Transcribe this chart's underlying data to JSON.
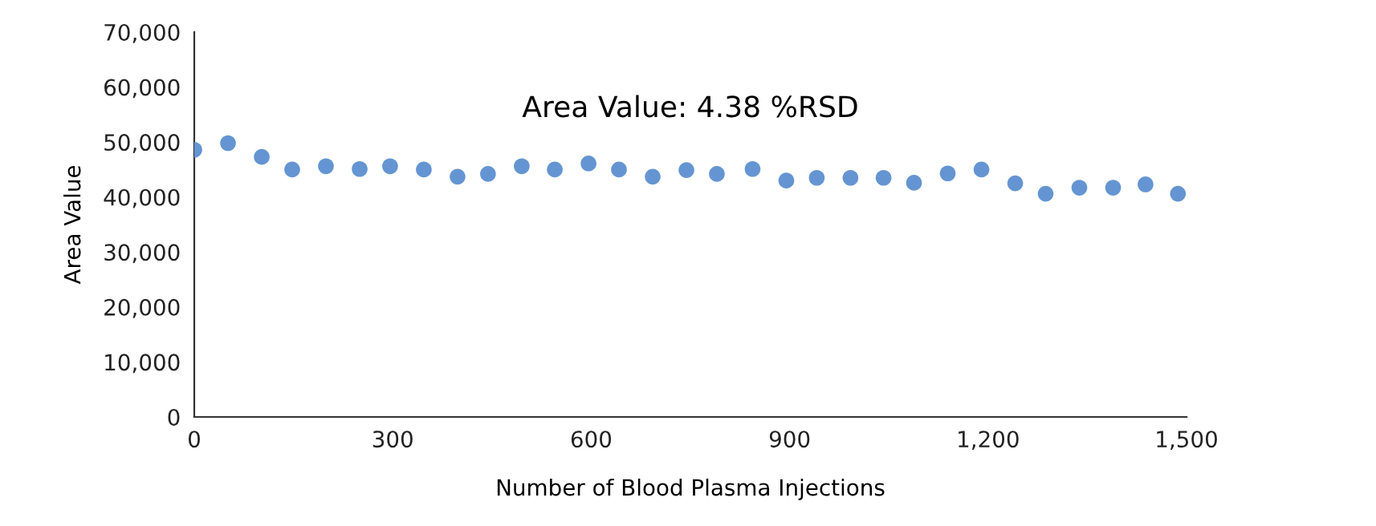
{
  "chart_data": {
    "type": "scatter",
    "xlabel": "Number of Blood Plasma Injections",
    "ylabel": "Area Value",
    "annotations": [
      "Area Value: 4.38 %RSD"
    ],
    "x": [
      0,
      51,
      102,
      148,
      199,
      250,
      296,
      347,
      398,
      444,
      495,
      545,
      596,
      642,
      693,
      744,
      790,
      844,
      895,
      941,
      992,
      1042,
      1088,
      1139,
      1190,
      1241,
      1287,
      1338,
      1389,
      1438,
      1487
    ],
    "series": [
      {
        "color": "#6495d2",
        "values": [
          48600,
          49800,
          47300,
          45000,
          45600,
          45100,
          45600,
          45000,
          43700,
          44200,
          45600,
          45000,
          46100,
          45000,
          43700,
          44900,
          44200,
          45100,
          43000,
          43500,
          43500,
          43500,
          42600,
          44300,
          45000,
          42500,
          40600,
          41700,
          41700,
          42300,
          40600
        ]
      }
    ],
    "xlim": [
      0,
      1500
    ],
    "xticks": [
      0,
      300,
      600,
      900,
      {
        "value": 1200,
        "label": "1,200"
      },
      {
        "value": 1500,
        "label": "1,500"
      }
    ],
    "ylim": [
      0,
      70000
    ],
    "yticks": [
      0,
      {
        "value": 10000,
        "label": "10,000"
      },
      {
        "value": 20000,
        "label": "20,000"
      },
      {
        "value": 30000,
        "label": "30,000"
      },
      {
        "value": 40000,
        "label": "40,000"
      },
      {
        "value": 50000,
        "label": "50,000"
      },
      {
        "value": 60000,
        "label": "60,000"
      },
      {
        "value": 70000,
        "label": "70,000"
      }
    ],
    "marker": "circle",
    "grid": false,
    "legend": false
  }
}
